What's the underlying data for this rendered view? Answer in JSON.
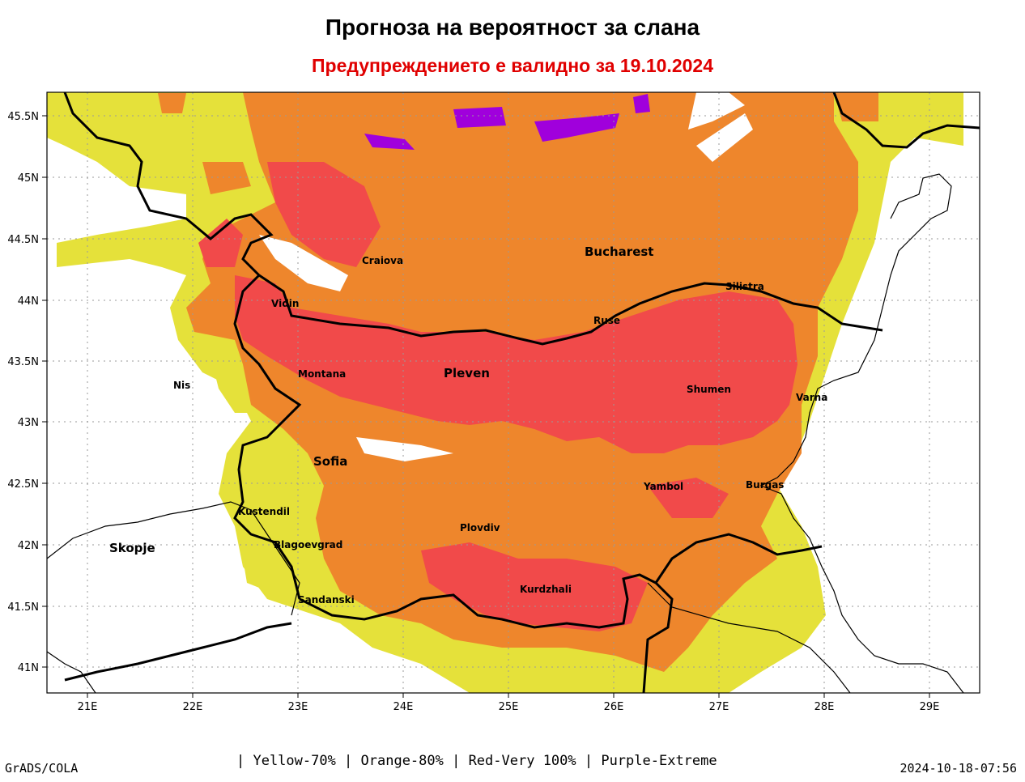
{
  "header": {
    "title": "Прогноза на вероятност за слана",
    "subtitle": "Предупреждението е валидно за 19.10.2024",
    "subtitle_color": "#e00000"
  },
  "map": {
    "lat_labels": [
      "45.5N",
      "45N",
      "44.5N",
      "44N",
      "43.5N",
      "43N",
      "42.5N",
      "42N",
      "41.5N",
      "41N"
    ],
    "lon_labels": [
      "21E",
      "22E",
      "23E",
      "24E",
      "25E",
      "26E",
      "27E",
      "28E",
      "29E"
    ],
    "colors": {
      "yellow": "#e5e13a",
      "orange": "#ee862c",
      "red": "#f14a4a",
      "purple": "#a000dc",
      "border": "#000000",
      "coast": "#000000",
      "grid": "#9a9a9a"
    },
    "cities": [
      {
        "id": "craiova",
        "name": "Craiova",
        "size": "small"
      },
      {
        "id": "bucharest",
        "name": "Bucharest",
        "size": "big"
      },
      {
        "id": "silistra",
        "name": "Silistra",
        "size": "small"
      },
      {
        "id": "vidin",
        "name": "Vidin",
        "size": "small"
      },
      {
        "id": "ruse",
        "name": "Ruse",
        "size": "small"
      },
      {
        "id": "nis",
        "name": "Nis",
        "size": "small"
      },
      {
        "id": "montana",
        "name": "Montana",
        "size": "small"
      },
      {
        "id": "pleven",
        "name": "Pleven",
        "size": "big"
      },
      {
        "id": "shumen",
        "name": "Shumen",
        "size": "small"
      },
      {
        "id": "varna",
        "name": "Varna",
        "size": "small"
      },
      {
        "id": "sofia",
        "name": "Sofia",
        "size": "big"
      },
      {
        "id": "yambol",
        "name": "Yambol",
        "size": "small"
      },
      {
        "id": "burgas",
        "name": "Burgas",
        "size": "small"
      },
      {
        "id": "kustendil",
        "name": "Kustendil",
        "size": "small"
      },
      {
        "id": "plovdiv",
        "name": "Plovdiv",
        "size": "small"
      },
      {
        "id": "skopje",
        "name": "Skopje",
        "size": "big"
      },
      {
        "id": "blagoevgrad",
        "name": "Blagoevgrad",
        "size": "small"
      },
      {
        "id": "kurdzhali",
        "name": "Kurdzhali",
        "size": "small"
      },
      {
        "id": "sandanski",
        "name": "Sandanski",
        "size": "small"
      }
    ]
  },
  "footer": {
    "left": "GrADS/COLA",
    "legend": "| Yellow-70% | Orange-80% | Red-Very 100% | Purple-Extreme",
    "right": "2024-10-18-07:56"
  }
}
